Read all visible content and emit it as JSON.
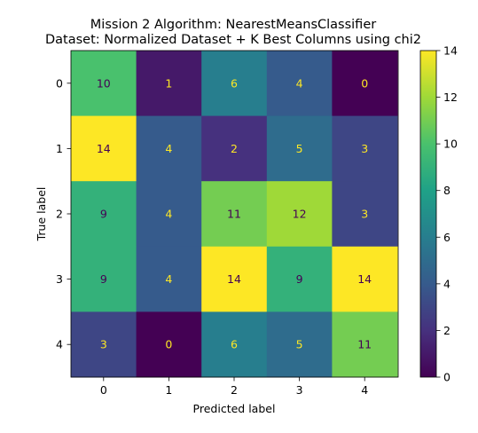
{
  "chart_data": {
    "type": "heatmap",
    "title_line1": "Mission 2 Algorithm: NearestMeansClassifier",
    "title_line2": "Dataset: Normalized Dataset + K Best Columns using chi2",
    "xlabel": "Predicted label",
    "ylabel": "True label",
    "x_categories": [
      "0",
      "1",
      "2",
      "3",
      "4"
    ],
    "y_categories": [
      "0",
      "1",
      "2",
      "3",
      "4"
    ],
    "matrix": [
      [
        10,
        1,
        6,
        4,
        0
      ],
      [
        14,
        4,
        2,
        5,
        3
      ],
      [
        9,
        4,
        11,
        12,
        3
      ],
      [
        9,
        4,
        14,
        9,
        14
      ],
      [
        3,
        0,
        6,
        5,
        11
      ]
    ],
    "colorbar": {
      "colormap": "viridis",
      "range": [
        0,
        14
      ],
      "ticks": [
        "0",
        "2",
        "4",
        "6",
        "8",
        "10",
        "12",
        "14"
      ]
    },
    "text_colors": {
      "on_dark": "#fde725",
      "on_light": "#440154"
    }
  }
}
